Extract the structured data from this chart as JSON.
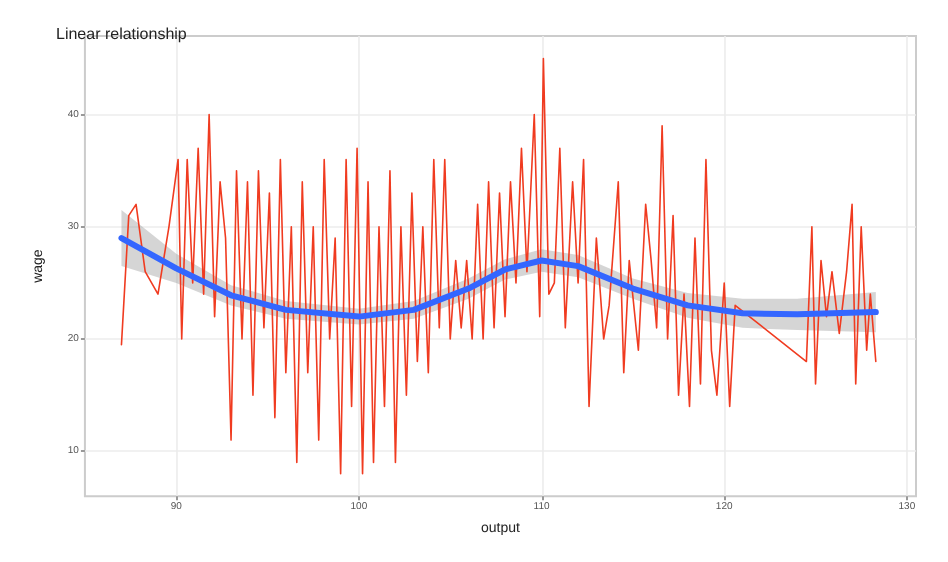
{
  "chart_data": {
    "type": "line",
    "title": "Linear relationship",
    "xlabel": "output",
    "ylabel": "wage",
    "xlim": [
      85,
      130.5
    ],
    "ylim": [
      6,
      47
    ],
    "xticks": [
      90,
      100,
      110,
      120,
      130
    ],
    "yticks": [
      10,
      20,
      30,
      40
    ],
    "grid": true,
    "marker": "none",
    "series": [
      {
        "color": "#f03b20",
        "x": [
          87,
          87.4,
          87.8,
          88.3,
          89,
          89.6,
          90.1,
          90.3,
          90.6,
          90.9,
          91.2,
          91.5,
          91.8,
          92.1,
          92.4,
          92.7,
          93,
          93.3,
          93.6,
          93.9,
          94.2,
          94.5,
          94.8,
          95.1,
          95.4,
          95.7,
          96,
          96.3,
          96.6,
          96.9,
          97.2,
          97.5,
          97.8,
          98.1,
          98.4,
          98.7,
          99,
          99.3,
          99.6,
          99.9,
          100.2,
          100.5,
          100.8,
          101.1,
          101.4,
          101.7,
          102,
          102.3,
          102.6,
          102.9,
          103.2,
          103.5,
          103.8,
          104.1,
          104.4,
          104.7,
          105,
          105.3,
          105.6,
          105.9,
          106.2,
          106.5,
          106.8,
          107.1,
          107.4,
          107.7,
          108,
          108.3,
          108.6,
          108.9,
          109.2,
          109.6,
          109.9,
          110.1,
          110.4,
          110.7,
          111,
          111.3,
          111.7,
          112,
          112.3,
          112.6,
          113,
          113.4,
          113.7,
          114.2,
          114.5,
          114.8,
          115.3,
          115.7,
          116,
          116.3,
          116.6,
          116.9,
          117.2,
          117.5,
          117.8,
          118.1,
          118.4,
          118.7,
          119,
          119.3,
          119.6,
          120,
          120.3,
          120.6,
          124.5,
          124.8,
          125,
          125.3,
          125.6,
          125.9,
          126.3,
          126.7,
          127,
          127.2,
          127.5,
          127.8,
          128,
          128.3
        ],
        "values": [
          19.5,
          31,
          32,
          26,
          24,
          30,
          36,
          20,
          36,
          25,
          37,
          24,
          40,
          22,
          34,
          29,
          11,
          35,
          20,
          34,
          15,
          35,
          21,
          33,
          13,
          36,
          17,
          30,
          9,
          34,
          17,
          30,
          11,
          36,
          20,
          29,
          8,
          36,
          14,
          37,
          8,
          34,
          9,
          30,
          14,
          35,
          9,
          30,
          15,
          33,
          18,
          30,
          17,
          36,
          21,
          36,
          20,
          27,
          21,
          27,
          20,
          32,
          20,
          34,
          21,
          33,
          22,
          34,
          25,
          37,
          26,
          40,
          22,
          45,
          24,
          25,
          37,
          21,
          34,
          25,
          36,
          14,
          29,
          20,
          23,
          34,
          17,
          27,
          19,
          32,
          27,
          21,
          39,
          20,
          31,
          15,
          24,
          14,
          29,
          16,
          36,
          19,
          15,
          25,
          14,
          23,
          18,
          30,
          16,
          27,
          22,
          26,
          20.5,
          26,
          32,
          16,
          30,
          19,
          24,
          18
        ]
      },
      {
        "type": "line",
        "color": "#3366ff",
        "x": [
          87,
          90,
          93,
          96,
          100,
          103,
          106,
          108,
          110,
          112,
          115,
          118,
          121,
          124,
          128.3
        ],
        "values": [
          29,
          26.3,
          23.9,
          22.6,
          22,
          22.6,
          24.5,
          26.2,
          27,
          26.5,
          24.5,
          23,
          22.3,
          22.2,
          22.4
        ],
        "lower": [
          26.5,
          25,
          23,
          21.8,
          21.3,
          21.8,
          23.6,
          25.3,
          26,
          25.5,
          23.6,
          21.9,
          21,
          20.8,
          20.6
        ],
        "upper": [
          31.5,
          27.6,
          24.8,
          23.4,
          22.7,
          23.4,
          25.4,
          27.1,
          28,
          27.5,
          25.4,
          24.1,
          23.6,
          23.6,
          24.2
        ]
      }
    ]
  }
}
